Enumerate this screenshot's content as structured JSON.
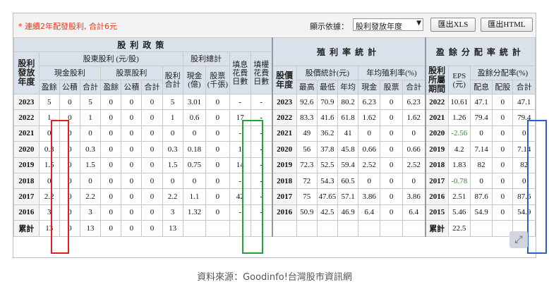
{
  "toolbar": {
    "note": "* 連續2年配發股利, 合計6元",
    "sort_label": "顯示依據：",
    "sort_value": "股利發放年度",
    "xls_button": "匯出XLS",
    "html_button": "匯出HTML"
  },
  "headers": {
    "dividend_policy": "股利政策",
    "yield_stats": "殖利率統計",
    "payout_stats": "盈餘分配率統計",
    "year_col": "股利發放年度",
    "cash_stock_div": "股東股利 (元/股)",
    "div_total": "股利總計",
    "fill_interest": "填息花費日數",
    "fill_rights": "填權花費日數",
    "price_year": "股價年度",
    "price_stats": "股價統計(元)",
    "avg_yield": "年均殖利率(%)",
    "profit_year": "股利所屬期間",
    "eps": "EPS (元)",
    "payout_ratio": "盈餘分配率(%)",
    "cash_div": "現金股利",
    "stock_div": "股票股利",
    "div_sum": "股利合計",
    "cash_amt": "現金(億)",
    "stock_amt": "股票(千張)",
    "sub_earn": "盈餘",
    "sub_reserve": "公積",
    "sub_total": "合計",
    "p_high": "最高",
    "p_low": "最低",
    "p_avg": "年均",
    "y_cash": "現金",
    "y_stock": "股票",
    "y_total": "合計",
    "r_cash": "配息",
    "r_stock": "配股",
    "r_total": "合計"
  },
  "rows": [
    {
      "year": "2023",
      "c_earn": "5",
      "c_res": "0",
      "c_tot": "5",
      "s_earn": "0",
      "s_res": "0",
      "s_tot": "0",
      "div_tot": "5",
      "cash_amt": "3.01",
      "stock_amt": "0",
      "fill_int": "-",
      "fill_rt": "-",
      "pyear": "2023",
      "high": "92.6",
      "low": "70.9",
      "avg": "80.2",
      "ycash": "6.23",
      "ystock": "0",
      "ytot": "6.23",
      "fyear": "2022",
      "eps": "10.61",
      "rcash": "47.1",
      "rstock": "0",
      "rtot": "47.1"
    },
    {
      "year": "2022",
      "c_earn": "1",
      "c_res": "0",
      "c_tot": "1",
      "s_earn": "0",
      "s_res": "0",
      "s_tot": "0",
      "div_tot": "1",
      "cash_amt": "0.6",
      "stock_amt": "0",
      "fill_int": "17",
      "fill_rt": "-",
      "pyear": "2022",
      "high": "83.3",
      "low": "41.6",
      "avg": "61.8",
      "ycash": "1.62",
      "ystock": "0",
      "ytot": "1.62",
      "fyear": "2021",
      "eps": "1.26",
      "rcash": "79.4",
      "rstock": "0",
      "rtot": "79.4"
    },
    {
      "year": "2021",
      "c_earn": "0",
      "c_res": "0",
      "c_tot": "0",
      "s_earn": "0",
      "s_res": "0",
      "s_tot": "0",
      "div_tot": "0",
      "cash_amt": "0",
      "stock_amt": "0",
      "fill_int": "-",
      "fill_rt": "-",
      "pyear": "2021",
      "high": "49",
      "low": "36.2",
      "avg": "41",
      "ycash": "0",
      "ystock": "0",
      "ytot": "0",
      "fyear": "2020",
      "eps": "-2.56",
      "rcash": "0",
      "rstock": "0",
      "rtot": "0"
    },
    {
      "year": "2020",
      "c_earn": "0.3",
      "c_res": "0",
      "c_tot": "0.3",
      "s_earn": "0",
      "s_res": "0",
      "s_tot": "0",
      "div_tot": "0.3",
      "cash_amt": "0.18",
      "stock_amt": "0",
      "fill_int": "1",
      "fill_rt": "-",
      "pyear": "2020",
      "high": "56",
      "low": "37.8",
      "avg": "45.8",
      "ycash": "0.66",
      "ystock": "0",
      "ytot": "0.66",
      "fyear": "2019",
      "eps": "4.2",
      "rcash": "7.14",
      "rstock": "0",
      "rtot": "7.14"
    },
    {
      "year": "2019",
      "c_earn": "1.5",
      "c_res": "0",
      "c_tot": "1.5",
      "s_earn": "0",
      "s_res": "0",
      "s_tot": "0",
      "div_tot": "1.5",
      "cash_amt": "0.75",
      "stock_amt": "0",
      "fill_int": "14",
      "fill_rt": "-",
      "pyear": "2019",
      "high": "72.3",
      "low": "52.5",
      "avg": "59.4",
      "ycash": "2.52",
      "ystock": "0",
      "ytot": "2.52",
      "fyear": "2018",
      "eps": "1.83",
      "rcash": "82",
      "rstock": "0",
      "rtot": "82"
    },
    {
      "year": "2018",
      "c_earn": "0",
      "c_res": "0",
      "c_tot": "0",
      "s_earn": "0",
      "s_res": "0",
      "s_tot": "0",
      "div_tot": "0",
      "cash_amt": "0",
      "stock_amt": "0",
      "fill_int": "-",
      "fill_rt": "-",
      "pyear": "2018",
      "high": "72",
      "low": "54.3",
      "avg": "60.5",
      "ycash": "0",
      "ystock": "0",
      "ytot": "0",
      "fyear": "2017",
      "eps": "-0.78",
      "rcash": "0",
      "rstock": "0",
      "rtot": "0"
    },
    {
      "year": "2017",
      "c_earn": "2.2",
      "c_res": "0",
      "c_tot": "2.2",
      "s_earn": "0",
      "s_res": "0",
      "s_tot": "0",
      "div_tot": "2.2",
      "cash_amt": "1.1",
      "stock_amt": "0",
      "fill_int": "42",
      "fill_rt": "-",
      "pyear": "2017",
      "high": "75",
      "low": "47.65",
      "avg": "57.1",
      "ycash": "3.86",
      "ystock": "0",
      "ytot": "3.86",
      "fyear": "2016",
      "eps": "2.51",
      "rcash": "87.6",
      "rstock": "0",
      "rtot": "87.6"
    },
    {
      "year": "2016",
      "c_earn": "3",
      "c_res": "0",
      "c_tot": "3",
      "s_earn": "0",
      "s_res": "0",
      "s_tot": "0",
      "div_tot": "3",
      "cash_amt": "1.32",
      "stock_amt": "0",
      "fill_int": "-",
      "fill_rt": "-",
      "pyear": "2016",
      "high": "50.9",
      "low": "42.5",
      "avg": "46.9",
      "ycash": "6.4",
      "ystock": "0",
      "ytot": "6.4",
      "fyear": "2015",
      "eps": "5.46",
      "rcash": "54.9",
      "rstock": "0",
      "rtot": "54.9"
    }
  ],
  "totals": {
    "label": "累計",
    "c_earn": "13",
    "c_res": "0",
    "c_tot": "13",
    "s_earn": "0",
    "s_res": "0",
    "s_tot": "0",
    "div_tot": "13",
    "f_label": "累計",
    "eps": "22.5"
  },
  "expand_icon": "expand-icon",
  "source": "資料來源：Goodinfo!台灣股市資訊網",
  "colors": {
    "note": "#e8331d",
    "red_frame": "#e02020",
    "green_frame": "#22a33a",
    "blue_frame": "#2c5fc4",
    "negative": "#2f8a2f",
    "header_bg": "#d9e2ea"
  }
}
